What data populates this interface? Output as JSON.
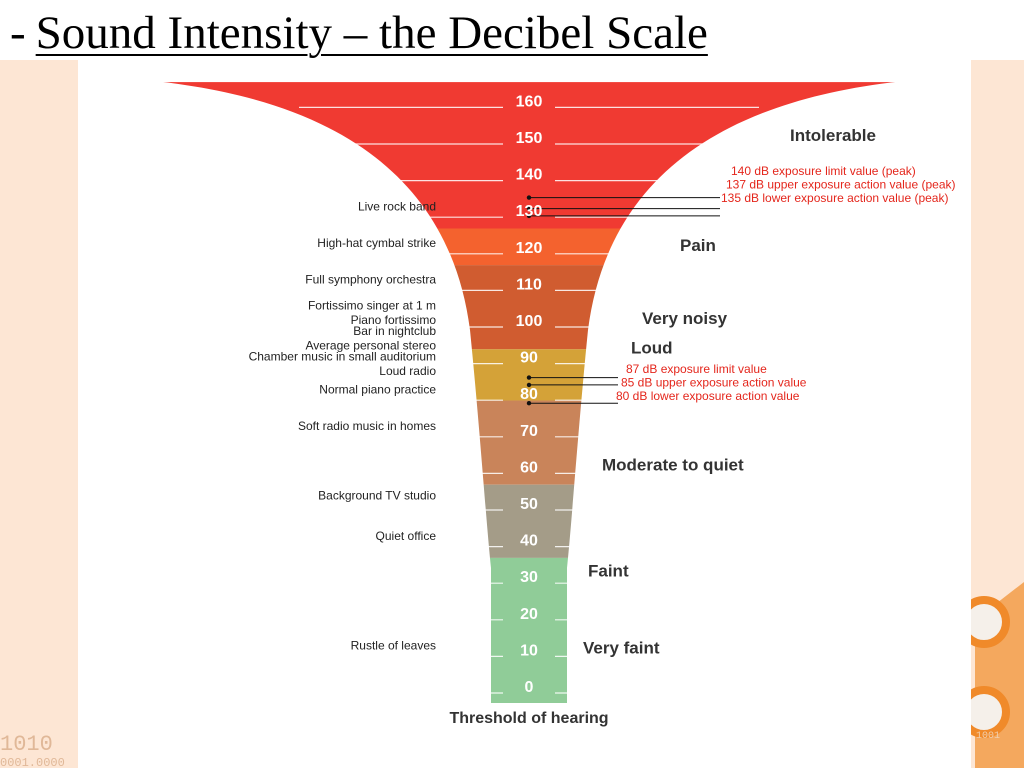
{
  "slide": {
    "dash": "-",
    "title": "Sound Intensity – the Decibel Scale"
  },
  "background": {
    "binary_left_1": "1010",
    "binary_left_2": "0001.0000",
    "binary_right": "1001"
  },
  "colors": {
    "red": "#f03a32",
    "pain": "#f4622e",
    "noisy": "#d05c30",
    "loud": "#d4a238",
    "moderate": "#c9845a",
    "quiet": "#a49c88",
    "faint": "#90cc98",
    "limit_text": "#e4261c"
  },
  "chart_data": {
    "type": "diagram",
    "scale_unit": "dB",
    "levels": [
      "160",
      "150",
      "140",
      "130",
      "120",
      "110",
      "100",
      "90",
      "80",
      "70",
      "60",
      "50",
      "40",
      "30",
      "20",
      "10",
      "0"
    ],
    "bands": [
      {
        "from": 125,
        "to": 165,
        "color": "#f03a32"
      },
      {
        "from": 115,
        "to": 125,
        "color": "#f4622e"
      },
      {
        "from": 92,
        "to": 115,
        "color": "#d05c30"
      },
      {
        "from": 78,
        "to": 92,
        "color": "#d4a238"
      },
      {
        "from": 55,
        "to": 78,
        "color": "#c9845a"
      },
      {
        "from": 35,
        "to": 55,
        "color": "#a49c88"
      },
      {
        "from": -5,
        "to": 35,
        "color": "#90cc98"
      }
    ],
    "categories": [
      {
        "label": "Intolerable",
        "db": 150
      },
      {
        "label": "Pain",
        "db": 120
      },
      {
        "label": "Very noisy",
        "db": 100
      },
      {
        "label": "Loud",
        "db": 92
      },
      {
        "label": "Moderate to quiet",
        "db": 60
      },
      {
        "label": "Faint",
        "db": 31
      },
      {
        "label": "Very faint",
        "db": 10
      }
    ],
    "examples": [
      {
        "label": "Live rock band",
        "db": 131
      },
      {
        "label": "High-hat cymbal strike",
        "db": 121
      },
      {
        "label": "Full symphony orchestra",
        "db": 111
      },
      {
        "label": "Fortissimo singer at 1 m",
        "db": 104
      },
      {
        "label": "Piano fortissimo",
        "db": 100
      },
      {
        "label": "Bar in nightclub",
        "db": 97
      },
      {
        "label": "Average personal stereo",
        "db": 93
      },
      {
        "label": "Chamber music in small auditorium",
        "db": 90
      },
      {
        "label": "Loud radio",
        "db": 86
      },
      {
        "label": "Normal piano practice",
        "db": 81
      },
      {
        "label": "Soft radio music in homes",
        "db": 71
      },
      {
        "label": "Background TV studio",
        "db": 52
      },
      {
        "label": "Quiet office",
        "db": 41
      },
      {
        "label": "Rustle of leaves",
        "db": 11
      }
    ],
    "limits": [
      {
        "label": "140 dB exposure limit value (peak)",
        "db": 140
      },
      {
        "label": "137 dB upper exposure action value (peak)",
        "db": 137
      },
      {
        "label": "135 dB lower exposure action value (peak)",
        "db": 135
      },
      {
        "label": "87 dB exposure limit value",
        "db": 87
      },
      {
        "label": "85 dB upper exposure action value",
        "db": 85
      },
      {
        "label": "80 dB lower exposure action value",
        "db": 80
      }
    ],
    "footer": "Threshold of hearing"
  }
}
